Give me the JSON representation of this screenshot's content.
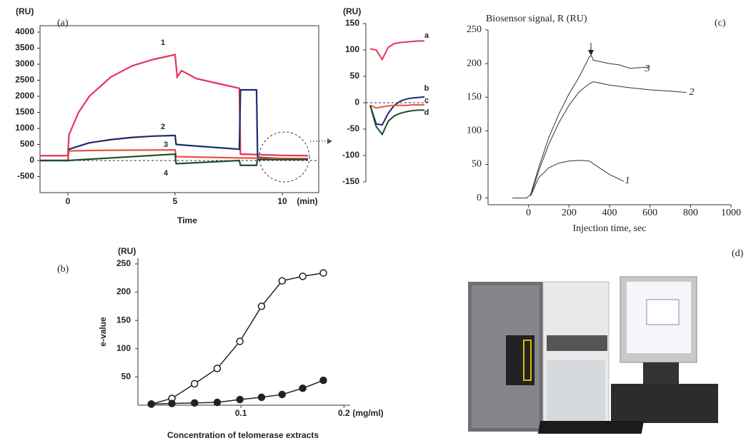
{
  "panel_labels": [
    "(a)",
    "(b)",
    "(c)",
    "(d)"
  ],
  "chart_data": [
    {
      "type": "line",
      "y_unit": "(RU)",
      "x_unit": "(min)",
      "x_label": "Time",
      "xlim": [
        -1.3,
        11.7
      ],
      "xticks": [
        0,
        5,
        10
      ],
      "ylim": [
        -1000,
        4200
      ],
      "yticks": [
        -500,
        0,
        500,
        1000,
        1500,
        2000,
        2500,
        3000,
        3500,
        4000
      ],
      "zero_line": true,
      "series": [
        {
          "name": "1",
          "color": "#e8335a",
          "x": [
            -1.3,
            0,
            0.05,
            0.5,
            1,
            2,
            3,
            4,
            5,
            5.1,
            5.3,
            6,
            7,
            8,
            8.05,
            9,
            10,
            11.2
          ],
          "values": [
            150,
            150,
            800,
            1500,
            2000,
            2600,
            2950,
            3150,
            3300,
            2600,
            2800,
            2550,
            2400,
            2250,
            200,
            180,
            160,
            150
          ]
        },
        {
          "name": "2",
          "color": "#1c2a6e",
          "x": [
            -1.3,
            0,
            0.05,
            1,
            2,
            3,
            4,
            5,
            5.05,
            6,
            8,
            8.05,
            8.8,
            8.85,
            10,
            11.2
          ],
          "values": [
            0,
            0,
            350,
            550,
            650,
            720,
            760,
            780,
            500,
            450,
            350,
            2200,
            2200,
            100,
            60,
            50
          ]
        },
        {
          "name": "3",
          "color": "#e8553a",
          "x": [
            -1.3,
            0,
            0.05,
            2,
            5,
            5.05,
            8,
            11.2
          ],
          "values": [
            0,
            0,
            300,
            320,
            330,
            120,
            80,
            60
          ]
        },
        {
          "name": "4",
          "color": "#1e4d2b",
          "x": [
            -1.3,
            0,
            5,
            5.05,
            8,
            8.05,
            8.8,
            8.85,
            11.2
          ],
          "values": [
            0,
            0,
            200,
            -100,
            0,
            -150,
            -150,
            30,
            30
          ]
        }
      ]
    },
    {
      "type": "line",
      "y_unit": "(RU)",
      "ylim": [
        -150,
        150
      ],
      "yticks": [
        -150,
        -100,
        -50,
        0,
        50,
        100,
        150
      ],
      "zero_line": true,
      "series": [
        {
          "name": "a",
          "color": "#e8335a",
          "values": [
            102,
            100,
            82,
            105,
            112,
            114,
            115,
            116,
            117,
            117
          ]
        },
        {
          "name": "b",
          "color": "#1c2a6e",
          "values": [
            -5,
            -40,
            -42,
            -20,
            -5,
            3,
            7,
            9,
            10,
            11
          ]
        },
        {
          "name": "c",
          "color": "#e8553a",
          "values": [
            -5,
            -10,
            -8,
            -6,
            -5,
            -5,
            -5,
            -4,
            -4,
            -4
          ]
        },
        {
          "name": "d",
          "color": "#1e4d2b",
          "values": [
            -5,
            -45,
            -60,
            -35,
            -25,
            -20,
            -17,
            -15,
            -14,
            -14
          ]
        }
      ]
    },
    {
      "type": "line",
      "y_label": "Biosensor signal, R (RU)",
      "x_label": "Injection time, sec",
      "xlim": [
        -200,
        1000
      ],
      "xticks": [
        0,
        200,
        400,
        600,
        800,
        1000
      ],
      "ylim": [
        -10,
        250
      ],
      "yticks": [
        0,
        50,
        100,
        150,
        200,
        250
      ],
      "series": [
        {
          "name": "3",
          "color": "#333333",
          "x": [
            -80,
            -10,
            10,
            50,
            100,
            150,
            200,
            250,
            300,
            310,
            320,
            400,
            450,
            500,
            600
          ],
          "values": [
            0,
            0,
            5,
            45,
            90,
            125,
            155,
            180,
            210,
            212,
            205,
            200,
            198,
            193,
            195
          ]
        },
        {
          "name": "2",
          "color": "#333333",
          "x": [
            10,
            50,
            100,
            150,
            200,
            250,
            300,
            320,
            400,
            500,
            600,
            700,
            780
          ],
          "values": [
            3,
            40,
            80,
            112,
            138,
            158,
            170,
            173,
            168,
            164,
            161,
            159,
            157
          ]
        },
        {
          "name": "1",
          "color": "#333333",
          "x": [
            10,
            50,
            100,
            150,
            200,
            250,
            300,
            310,
            350,
            400,
            470
          ],
          "values": [
            3,
            30,
            45,
            52,
            55,
            56,
            55,
            53,
            45,
            35,
            25
          ]
        }
      ]
    },
    {
      "type": "scatter",
      "y_unit": "(RU)",
      "y_label": "e-value",
      "x_unit": "(mg/ml)",
      "x_label": "Concentration of telomerase extracts",
      "xlim": [
        0,
        0.206
      ],
      "xticks": [
        0.1,
        0.2
      ],
      "ylim": [
        0,
        260
      ],
      "yticks": [
        50,
        100,
        150,
        200,
        250
      ],
      "series": [
        {
          "marker": "open",
          "color": "#222222",
          "x": [
            0.013,
            0.033,
            0.055,
            0.077,
            0.099,
            0.12,
            0.14,
            0.16,
            0.18
          ],
          "values": [
            2,
            12,
            38,
            65,
            113,
            175,
            220,
            228,
            234
          ]
        },
        {
          "marker": "filled",
          "color": "#222222",
          "x": [
            0.013,
            0.033,
            0.055,
            0.077,
            0.099,
            0.12,
            0.14,
            0.16,
            0.18
          ],
          "values": [
            2,
            3,
            4,
            5,
            10,
            14,
            19,
            30,
            44
          ]
        }
      ]
    }
  ]
}
